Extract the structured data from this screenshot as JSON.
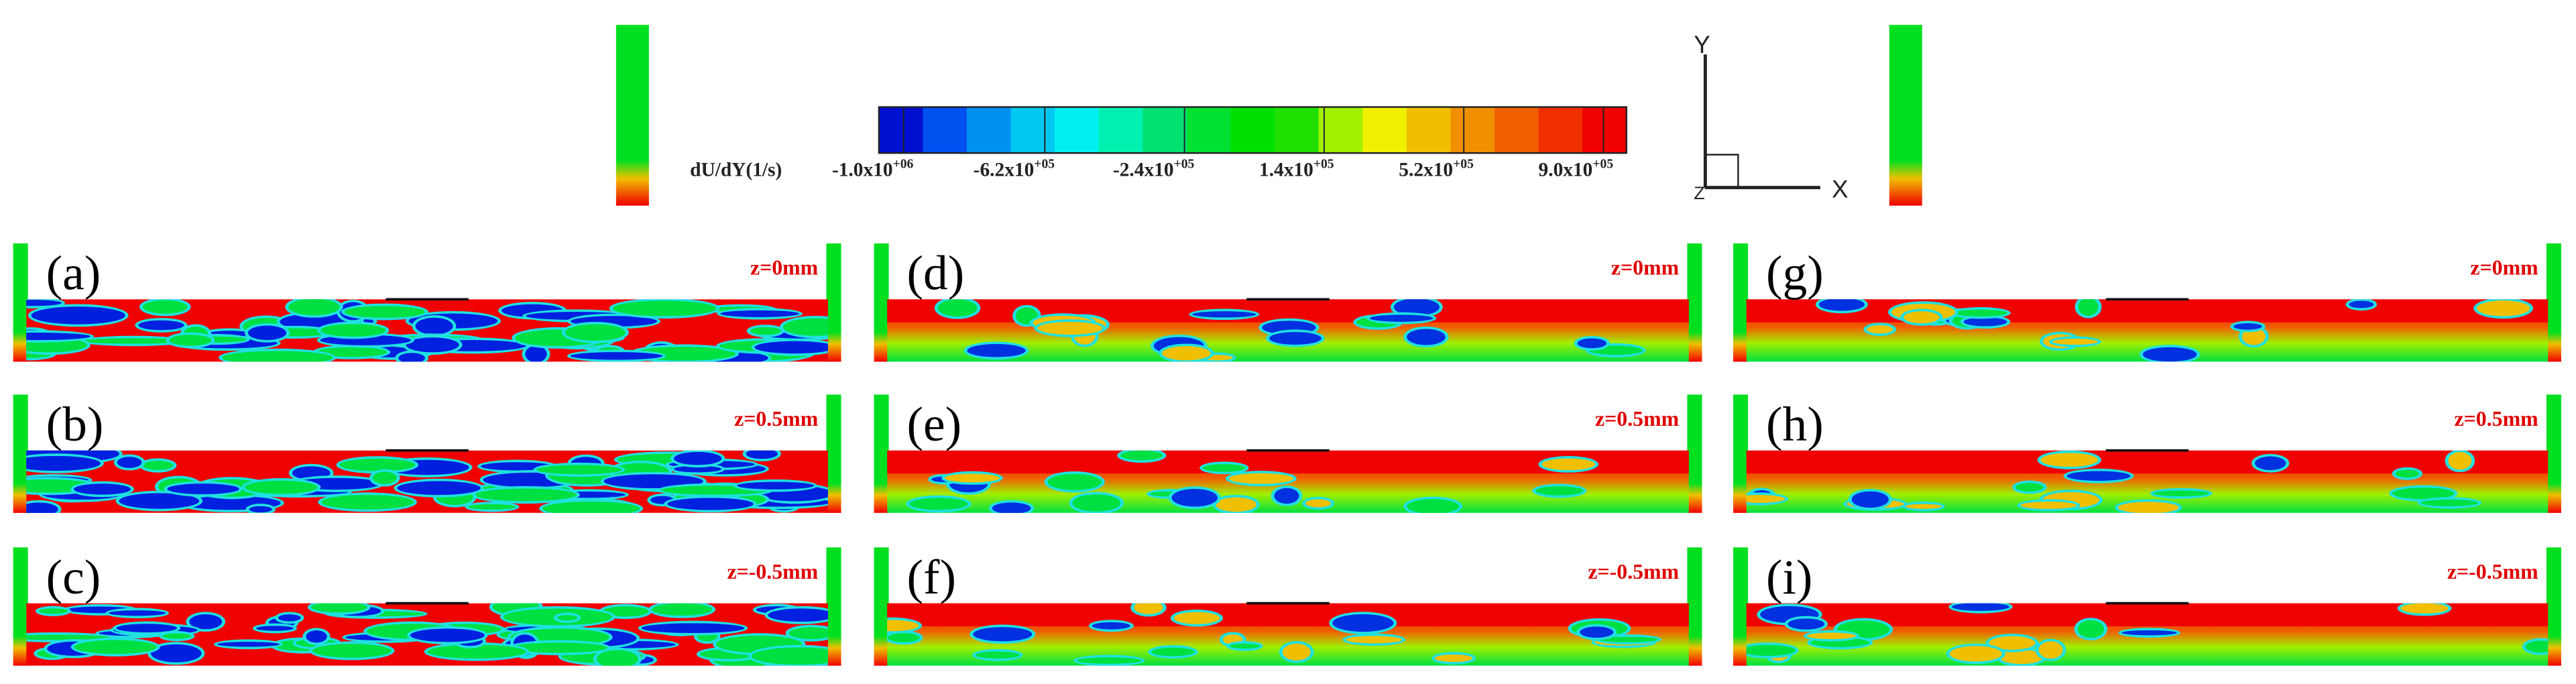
{
  "colorbar": {
    "label": "dU/dY(1/s)",
    "ticks": [
      {
        "base": "-1.0x10",
        "exp": "+06"
      },
      {
        "base": "-6.2x10",
        "exp": "+05"
      },
      {
        "base": "-2.4x10",
        "exp": "+05"
      },
      {
        "base": "1.4x10",
        "exp": "+05"
      },
      {
        "base": "5.2x10",
        "exp": "+05"
      },
      {
        "base": "9.0x10",
        "exp": "+05"
      }
    ]
  },
  "axes": {
    "y": "Y",
    "x": "X",
    "z": "Z"
  },
  "panels": [
    {
      "label": "(a)",
      "z": "z=0mm"
    },
    {
      "label": "(b)",
      "z": "z=0.5mm"
    },
    {
      "label": "(c)",
      "z": "z=-0.5mm"
    },
    {
      "label": "(d)",
      "z": "z=0mm"
    },
    {
      "label": "(e)",
      "z": "z=0.5mm"
    },
    {
      "label": "(f)",
      "z": "z=-0.5mm"
    },
    {
      "label": "(g)",
      "z": "z=0mm"
    },
    {
      "label": "(h)",
      "z": "z=0.5mm"
    },
    {
      "label": "(i)",
      "z": "z=-0.5mm"
    }
  ]
}
